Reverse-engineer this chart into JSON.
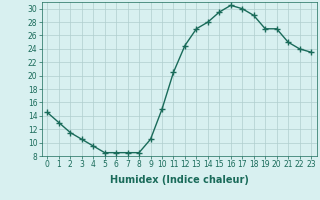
{
  "x": [
    0,
    1,
    2,
    3,
    4,
    5,
    6,
    7,
    8,
    9,
    10,
    11,
    12,
    13,
    14,
    15,
    16,
    17,
    18,
    19,
    20,
    21,
    22,
    23
  ],
  "y": [
    14.5,
    13.0,
    11.5,
    10.5,
    9.5,
    8.5,
    8.5,
    8.5,
    8.5,
    10.5,
    15.0,
    20.5,
    24.5,
    27.0,
    28.0,
    29.5,
    30.5,
    30.0,
    29.0,
    27.0,
    27.0,
    25.0,
    24.0,
    23.5
  ],
  "line_color": "#1a6b5a",
  "marker": "+",
  "marker_size": 4,
  "bg_color": "#d8f0f0",
  "grid_color": "#b0cece",
  "xlabel": "Humidex (Indice chaleur)",
  "ylim": [
    8,
    31
  ],
  "xlim": [
    -0.5,
    23.5
  ],
  "yticks": [
    8,
    10,
    12,
    14,
    16,
    18,
    20,
    22,
    24,
    26,
    28,
    30
  ],
  "xticks": [
    0,
    1,
    2,
    3,
    4,
    5,
    6,
    7,
    8,
    9,
    10,
    11,
    12,
    13,
    14,
    15,
    16,
    17,
    18,
    19,
    20,
    21,
    22,
    23
  ],
  "tick_label_size": 5.5,
  "xlabel_size": 7,
  "line_width": 1.0
}
